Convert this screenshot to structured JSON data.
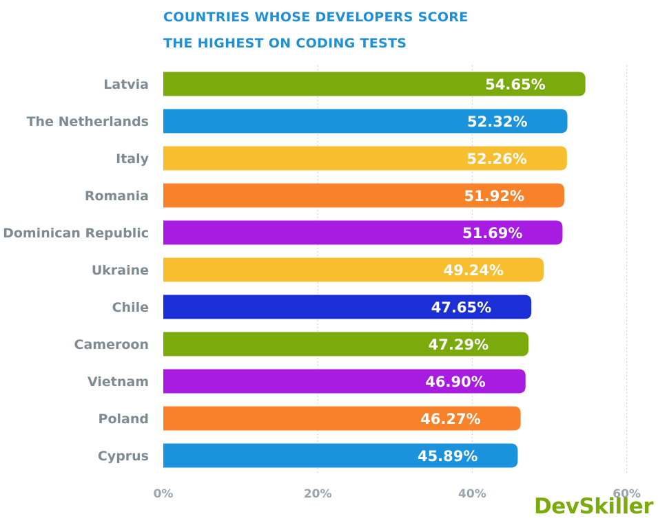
{
  "chart_data": {
    "type": "bar",
    "orientation": "horizontal",
    "title": "COUNTRIES WHOSE DEVELOPERS SCORE THE HIGHEST ON CODING TESTS",
    "title_lines": [
      "COUNTRIES WHOSE DEVELOPERS SCORE",
      "THE HIGHEST ON CODING TESTS"
    ],
    "categories": [
      "Latvia",
      "The Netherlands",
      "Italy",
      "Romania",
      "Dominican Republic",
      "Ukraine",
      "Chile",
      "Cameroon",
      "Vietnam",
      "Poland",
      "Cyprus"
    ],
    "values": [
      54.65,
      52.32,
      52.26,
      51.92,
      51.69,
      49.24,
      47.65,
      47.29,
      46.9,
      46.27,
      45.89
    ],
    "value_labels": [
      "54.65%",
      "52.32%",
      "52.26%",
      "51.92%",
      "51.69%",
      "49.24%",
      "47.65%",
      "47.29%",
      "46.90%",
      "46.27%",
      "45.89%"
    ],
    "bar_colors": [
      "#7aaa0c",
      "#1a93dc",
      "#f7be2f",
      "#f7822a",
      "#a81be0",
      "#f7be2f",
      "#1c2fd6",
      "#7aaa0c",
      "#a81be0",
      "#f7822a",
      "#1a93dc"
    ],
    "x_ticks": [
      0,
      20,
      40,
      60
    ],
    "x_tick_labels": [
      "0%",
      "20%",
      "40%",
      "60%"
    ],
    "xlim": [
      0,
      60
    ],
    "xlabel": "",
    "ylabel": "",
    "grid": true
  },
  "logo": {
    "text": "DevSkiller",
    "color": "#7aaa0c"
  }
}
